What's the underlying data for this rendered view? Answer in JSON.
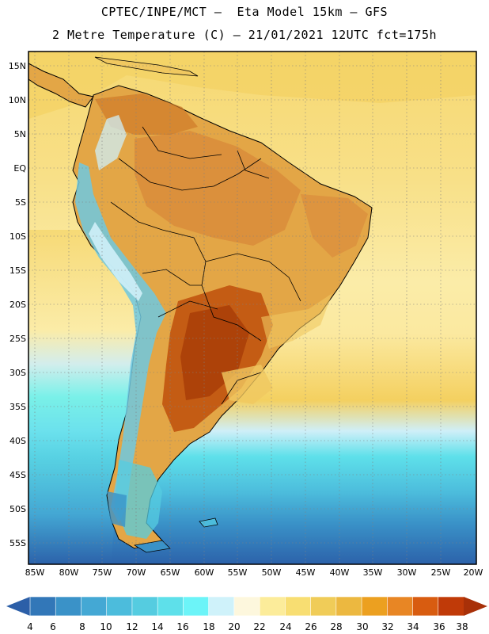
{
  "header": {
    "title_line1": "CPTEC/INPE/MCT –  Eta Model 15km – GFS",
    "title_line2": "2 Metre Temperature (C) – 21/01/2021 12UTC fct=175h"
  },
  "map": {
    "lat_ticks": [
      "15N",
      "10N",
      "5N",
      "EQ",
      "5S",
      "10S",
      "15S",
      "20S",
      "25S",
      "30S",
      "35S",
      "40S",
      "45S",
      "50S",
      "55S"
    ],
    "lon_ticks": [
      "85W",
      "80W",
      "75W",
      "70W",
      "65W",
      "60W",
      "55W",
      "50W",
      "45W",
      "40W",
      "35W",
      "30W",
      "25W",
      "20W"
    ],
    "colors": {
      "ocean_tropical": "#f6dc78",
      "ocean_subtropical": "#fbeeaa",
      "land_hot": "#e0a040",
      "land_very_hot": "#c86418",
      "andes_cold": "#6ec8e0",
      "southern_ocean": "#3a8cc8"
    }
  },
  "colorbar": {
    "labels": [
      "4",
      "6",
      "8",
      "10",
      "12",
      "14",
      "16",
      "18",
      "20",
      "22",
      "24",
      "26",
      "28",
      "30",
      "32",
      "34",
      "36",
      "38"
    ],
    "colors": [
      "#2c5fa8",
      "#3277b8",
      "#3a92c8",
      "#44a8d4",
      "#4cbcdc",
      "#55cce0",
      "#5ee0ea",
      "#6cf4f8",
      "#cff2fa",
      "#fdf7dd",
      "#fcec9a",
      "#f8de72",
      "#f0cc58",
      "#ecb840",
      "#eca020",
      "#e88624",
      "#d85c10",
      "#c03a08",
      "#a83008"
    ]
  }
}
